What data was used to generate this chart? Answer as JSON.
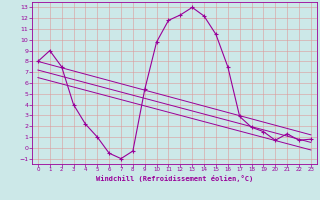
{
  "xlabel": "Windchill (Refroidissement éolien,°C)",
  "x": [
    0,
    1,
    2,
    3,
    4,
    5,
    6,
    7,
    8,
    9,
    10,
    11,
    12,
    13,
    14,
    15,
    16,
    17,
    18,
    19,
    20,
    21,
    22,
    23
  ],
  "y": [
    8.0,
    9.0,
    7.5,
    4.0,
    2.2,
    1.0,
    -0.5,
    -1.0,
    -0.3,
    5.4,
    9.8,
    11.8,
    12.3,
    13.0,
    12.2,
    10.5,
    7.5,
    2.9,
    1.9,
    1.5,
    0.7,
    1.3,
    0.7,
    0.8
  ],
  "line_color": "#990099",
  "bg_color": "#cce8e8",
  "grid_color": "#dd9999",
  "ylim": [
    -1.5,
    13.5
  ],
  "xlim": [
    -0.5,
    23.5
  ],
  "yticks": [
    -1,
    0,
    1,
    2,
    3,
    4,
    5,
    6,
    7,
    8,
    9,
    10,
    11,
    12,
    13
  ],
  "xticks": [
    0,
    1,
    2,
    3,
    4,
    5,
    6,
    7,
    8,
    9,
    10,
    11,
    12,
    13,
    14,
    15,
    16,
    17,
    18,
    19,
    20,
    21,
    22,
    23
  ],
  "trend_lines": [
    {
      "x0": 0,
      "y0": 8.0,
      "x1": 23,
      "y1": 1.2
    },
    {
      "x0": 0,
      "y0": 7.2,
      "x1": 23,
      "y1": 0.5
    },
    {
      "x0": 0,
      "y0": 6.5,
      "x1": 23,
      "y1": -0.2
    }
  ]
}
